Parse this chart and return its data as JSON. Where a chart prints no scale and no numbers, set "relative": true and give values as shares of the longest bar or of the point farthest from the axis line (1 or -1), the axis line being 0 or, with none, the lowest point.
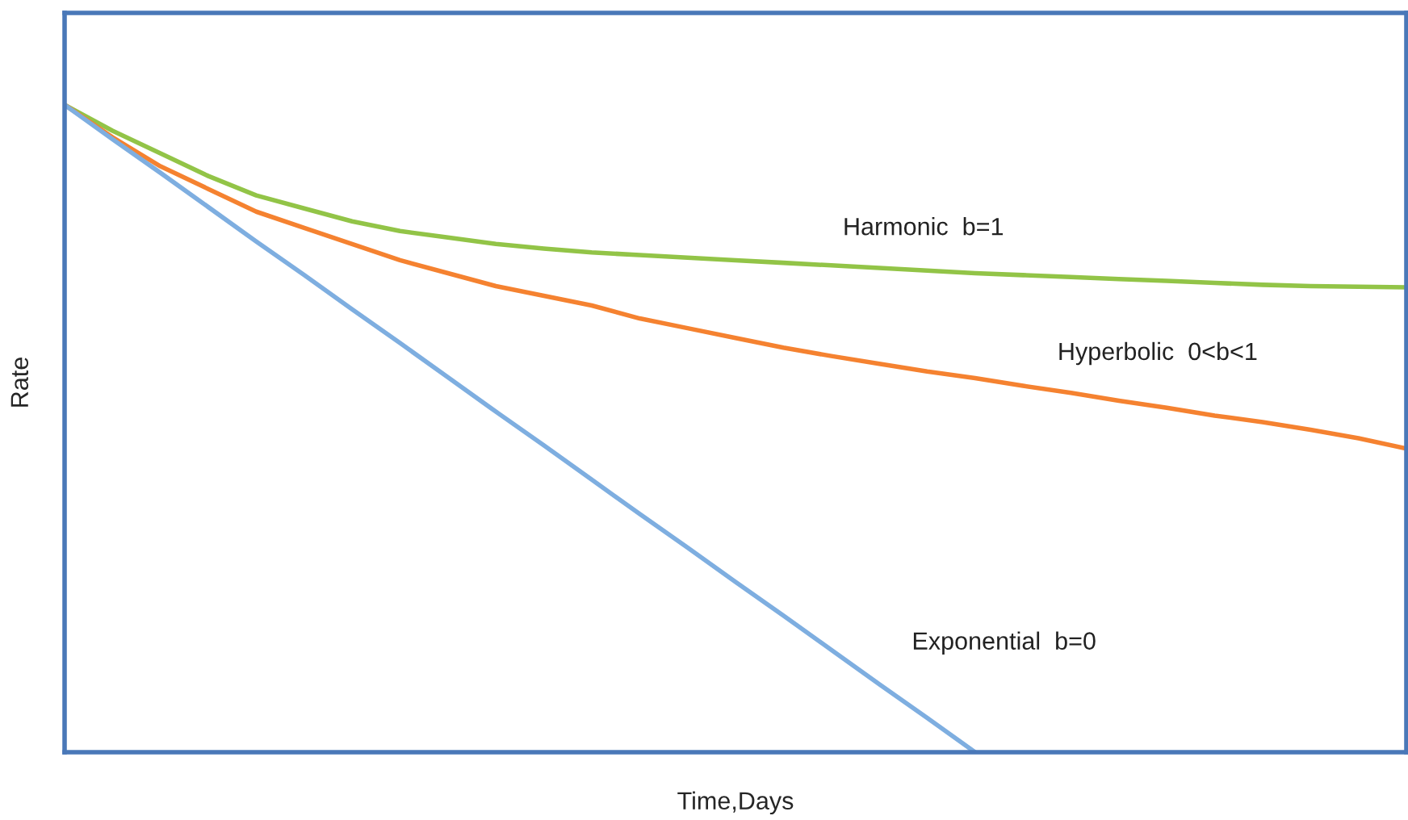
{
  "chart_data": {
    "type": "line",
    "relative": true,
    "xlabel": "Time,Days",
    "ylabel": "Rate",
    "categories": [
      null,
      null,
      null,
      null,
      null,
      null,
      null,
      null,
      null,
      null,
      null,
      null,
      null,
      null,
      null,
      null,
      null,
      null,
      null,
      null,
      null,
      null,
      null,
      null,
      null,
      null,
      null,
      null,
      null
    ],
    "series": [
      {
        "name": "Harmonic  b=1",
        "color": "#92c447",
        "values": [
          1,
          0.96,
          0.925,
          0.89,
          0.86,
          0.84,
          0.82,
          0.805,
          0.795,
          0.785,
          0.778,
          0.772,
          0.768,
          0.764,
          0.76,
          0.756,
          0.752,
          0.748,
          0.744,
          0.74,
          0.737,
          0.734,
          0.731,
          0.728,
          0.725,
          0.722,
          0.72,
          0.719,
          0.718
        ]
      },
      {
        "name": "Hyperbolic  0<b<1",
        "color": "#f58230",
        "values": [
          1,
          0.95,
          0.905,
          0.87,
          0.835,
          0.81,
          0.785,
          0.76,
          0.74,
          0.72,
          0.705,
          0.69,
          0.67,
          0.655,
          0.64,
          0.625,
          0.612,
          0.6,
          0.588,
          0.578,
          0.566,
          0.555,
          0.543,
          0.532,
          0.52,
          0.51,
          0.498,
          0.485,
          0.469
        ]
      },
      {
        "name": "Exponential  b=0",
        "color": "#7eaee0",
        "values": [
          1,
          0.947,
          0.895,
          0.842,
          0.789,
          0.737,
          0.684,
          0.632,
          0.579,
          0.526,
          0.474,
          0.421,
          0.368,
          0.316,
          0.263,
          0.211,
          0.158,
          0.105,
          0.053,
          0,
          null,
          null,
          null,
          null,
          null,
          null,
          null,
          null,
          null
        ]
      }
    ],
    "legend": false,
    "grid": false,
    "marker": "none",
    "line_style": "solid"
  }
}
